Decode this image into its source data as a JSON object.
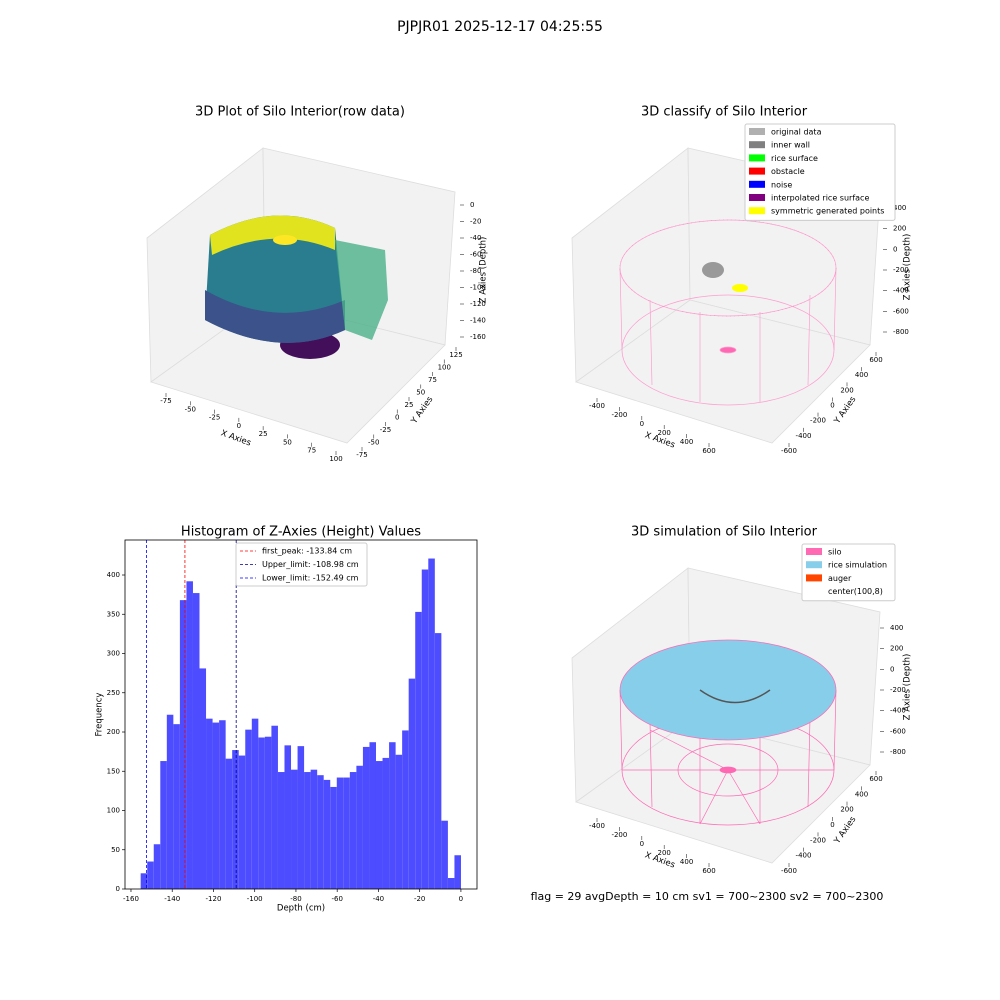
{
  "suptitle": "PJPJR01 2025-12-17 04:25:55",
  "footer": "flag = 29  avgDepth = 10 cm    sv1 = 700~2300  sv2 = 700~2300",
  "chart_data": [
    {
      "type": "scatter3d",
      "title": "3D Plot of Silo Interior(row data)",
      "xlabel": "X Axies",
      "ylabel": "Y Axies",
      "zlabel": "Z Axies (Depth)",
      "xticks": [
        -75,
        -50,
        -25,
        0,
        25,
        50,
        75,
        100
      ],
      "yticks": [
        -75,
        -50,
        -25,
        0,
        25,
        50,
        75,
        100,
        125
      ],
      "zticks": [
        0,
        -20,
        -40,
        -60,
        -80,
        -100,
        -120,
        -140,
        -160
      ]
    },
    {
      "type": "scatter3d",
      "title": "3D classify of Silo Interior",
      "xlabel": "X Axies",
      "ylabel": "Y Axies",
      "zlabel": "Z Axies (Depth)",
      "xticks": [
        -400,
        -200,
        0,
        200,
        400,
        600
      ],
      "yticks": [
        -600,
        -400,
        -200,
        0,
        200,
        400,
        600
      ],
      "zticks": [
        400,
        200,
        0,
        -200,
        -400,
        -600,
        -800
      ],
      "legend": [
        {
          "name": "original data",
          "color": "#b0b0b0"
        },
        {
          "name": "inner wall",
          "color": "#808080"
        },
        {
          "name": "rice surface",
          "color": "#00ff00"
        },
        {
          "name": "obstacle",
          "color": "#ff0000"
        },
        {
          "name": "noise",
          "color": "#0000ff"
        },
        {
          "name": "interpolated rice surface",
          "color": "#800080"
        },
        {
          "name": "symmetric generated points",
          "color": "#ffff00"
        }
      ]
    },
    {
      "type": "histogram",
      "title": "Histogram of Z-Axies (Height) Values",
      "xlabel": "Depth (cm)",
      "ylabel": "Frequency",
      "color": "#4d4dff",
      "bins": [
        -155.3,
        -152.13,
        -148.96,
        -145.79,
        -142.62,
        -139.45,
        -136.28,
        -133.11,
        -129.94,
        -126.77,
        -123.6,
        -120.43,
        -117.26,
        -114.09,
        -110.92,
        -107.75,
        -104.58,
        -101.41,
        -98.24,
        -95.07,
        -91.9,
        -88.73,
        -85.56,
        -82.39,
        -79.22,
        -76.05,
        -72.88,
        -69.71,
        -66.54,
        -63.37,
        -60.2,
        -57.03,
        -53.86,
        -50.69,
        -47.52,
        -44.35,
        -41.18,
        -38.01,
        -34.84,
        -31.67,
        -28.5,
        -25.33,
        -22.16,
        -18.99,
        -15.82,
        -12.65,
        -9.48,
        -6.31,
        -3.14,
        0.03
      ],
      "values": [
        20,
        35,
        57,
        163,
        222,
        210,
        368,
        392,
        377,
        281,
        217,
        212,
        215,
        166,
        177,
        170,
        203,
        217,
        193,
        194,
        208,
        149,
        183,
        152,
        182,
        149,
        152,
        145,
        139,
        130,
        142,
        142,
        149,
        157,
        181,
        187,
        163,
        167,
        187,
        171,
        202,
        268,
        353,
        407,
        421,
        326,
        87,
        14,
        43
      ],
      "xlim": [
        -162.9,
        7.8
      ],
      "ylim": [
        0,
        444.6
      ],
      "xticks": [
        -160,
        -140,
        -120,
        -100,
        -80,
        -60,
        -40,
        -20,
        0
      ],
      "yticks": [
        0,
        50,
        100,
        150,
        200,
        250,
        300,
        350,
        400
      ],
      "vlines": [
        {
          "name": "first_peak: -133.84 cm",
          "value": -133.84,
          "color": "#ff0000"
        },
        {
          "name": "Upper_limit: -108.98 cm",
          "value": -108.98,
          "color": "#00008b"
        },
        {
          "name": "Lower_limit: -152.49 cm",
          "value": -152.49,
          "color": "#0000ff"
        }
      ]
    },
    {
      "type": "surface3d",
      "title": "3D simulation of Silo Interior",
      "xlabel": "X Axies",
      "ylabel": "Y Axies",
      "zlabel": "Z Axies (Depth)",
      "xticks": [
        -400,
        -200,
        0,
        200,
        400,
        600
      ],
      "yticks": [
        -600,
        -400,
        -200,
        0,
        200,
        400,
        600
      ],
      "zticks": [
        400,
        200,
        0,
        -200,
        -400,
        -600,
        -800
      ],
      "legend": [
        {
          "name": "silo",
          "color": "#ff69b4"
        },
        {
          "name": "rice simulation",
          "color": "#87ceeb"
        },
        {
          "name": "auger",
          "color": "#ff4500"
        },
        {
          "name": "center(100,8)",
          "color": "#ffffff"
        }
      ]
    }
  ]
}
